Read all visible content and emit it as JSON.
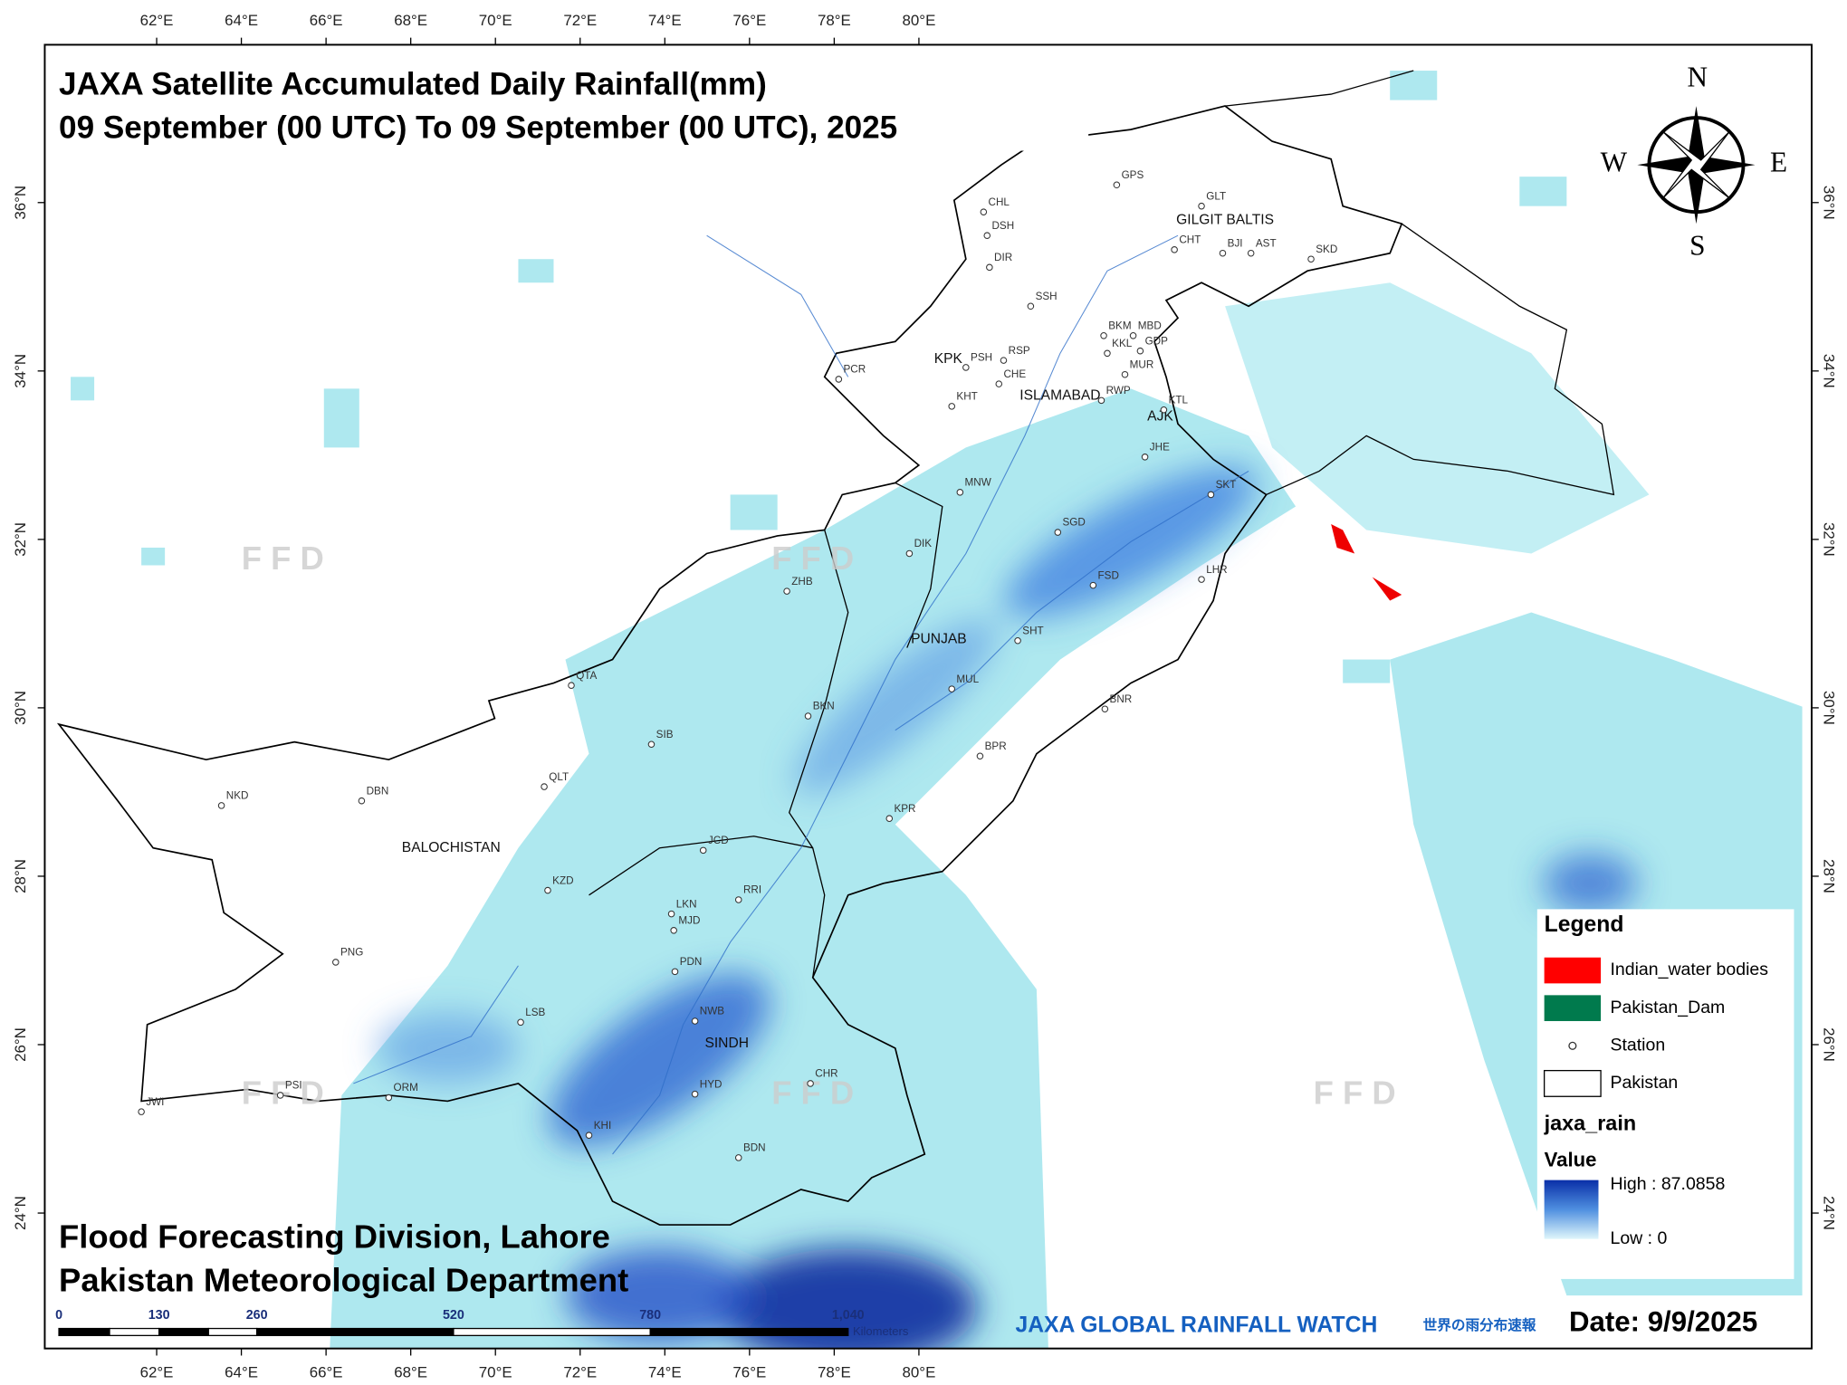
{
  "header": {
    "title": "JAXA Satellite Accumulated Daily Rainfall(mm)",
    "subtitle": "09 September  (00 UTC) To 09 September (00 UTC), 2025"
  },
  "graticule": {
    "longitudes": [
      "62°E",
      "64°E",
      "66°E",
      "68°E",
      "70°E",
      "72°E",
      "74°E",
      "76°E",
      "78°E",
      "80°E"
    ],
    "latitudes": [
      "36°N",
      "34°N",
      "32°N",
      "30°N",
      "28°N",
      "26°N",
      "24°N"
    ]
  },
  "compass": {
    "north": "N",
    "east": "E",
    "south": "S",
    "west": "W"
  },
  "regions": [
    "GILGIT BALTIS",
    "KPK",
    "ISLAMABAD",
    "AJK",
    "PUNJAB",
    "BALOCHISTAN",
    "SINDH"
  ],
  "stations": [
    "GPS",
    "GLT",
    "CHT",
    "BJI",
    "AST",
    "SKD",
    "CHL",
    "DSH",
    "DIR",
    "SSH",
    "BKM",
    "MBD",
    "KKL",
    "GDP",
    "MUR",
    "PSH",
    "RSP",
    "CHE",
    "KHT",
    "RWP",
    "KTL",
    "JHE",
    "PCR",
    "MNW",
    "SKT",
    "SGD",
    "FSD",
    "LHR",
    "DIK",
    "ZHB",
    "SHT",
    "QTA",
    "MUL",
    "BKN",
    "BNR",
    "SIB",
    "BPR",
    "QLT",
    "NKD",
    "DBN",
    "KPR",
    "JCD",
    "KZD",
    "RRI",
    "LKN",
    "MJD",
    "PDN",
    "PNG",
    "NWB",
    "LSB",
    "HYD",
    "CHR",
    "PSI",
    "ORM",
    "JWI",
    "KHI",
    "BDN"
  ],
  "watermark": "F F D",
  "legend": {
    "title": "Legend",
    "items": [
      "Indian_water bodies",
      "Pakistan_Dam",
      "Station",
      "Pakistan"
    ],
    "layer": "jaxa_rain",
    "value_title": "Value",
    "high": "High : 87.0858",
    "low": "Low : 0"
  },
  "footer": {
    "line1": "Flood Forecasting Division, Lahore",
    "line2": "Pakistan Meteorological Department",
    "jaxa": "JAXA GLOBAL RAINFALL WATCH",
    "jaxa_jp": "世界の雨分布速報",
    "date": "Date: 9/9/2025"
  },
  "scale_bar": {
    "labels": [
      "0",
      "130",
      "260",
      "520",
      "780",
      "1,040"
    ],
    "unit": "Kilometers"
  }
}
